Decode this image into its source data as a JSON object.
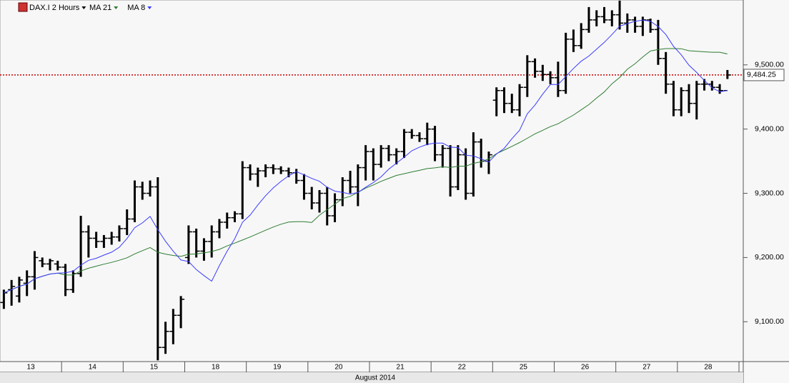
{
  "chart_data": {
    "type": "ohlc",
    "title": "DAX.I 2 Hours",
    "xlabel": "August 2014",
    "categories": [
      "13",
      "14",
      "15",
      "18",
      "19",
      "20",
      "21",
      "22",
      "25",
      "26",
      "27",
      "28"
    ],
    "bars": [
      [
        [
          9130,
          9150,
          9120,
          9145
        ],
        [
          9150,
          9165,
          9125,
          9155
        ],
        [
          9140,
          9170,
          9130,
          9165
        ],
        [
          9160,
          9180,
          9140,
          9170
        ],
        [
          9170,
          9210,
          9150,
          9200
        ],
        [
          9195,
          9200,
          9185,
          9190
        ],
        [
          9190,
          9198,
          9180,
          9195
        ],
        [
          9190,
          9195,
          9180,
          9185
        ]
      ],
      [
        [
          9185,
          9190,
          9140,
          9150
        ],
        [
          9150,
          9180,
          9145,
          9175
        ],
        [
          9175,
          9265,
          9170,
          9240
        ],
        [
          9240,
          9250,
          9200,
          9230
        ],
        [
          9230,
          9240,
          9215,
          9225
        ],
        [
          9225,
          9235,
          9215,
          9230
        ],
        [
          9230,
          9240,
          9220,
          9232
        ],
        [
          9232,
          9250,
          9225,
          9245
        ]
      ],
      [
        [
          9245,
          9275,
          9235,
          9260
        ],
        [
          9260,
          9320,
          9255,
          9310
        ],
        [
          9310,
          9318,
          9290,
          9300
        ],
        [
          9300,
          9320,
          9295,
          9310
        ],
        [
          9310,
          9325,
          9040,
          9060
        ],
        [
          9060,
          9100,
          9050,
          9085
        ],
        [
          9085,
          9120,
          9065,
          9110
        ],
        [
          9110,
          9140,
          9090,
          9135
        ]
      ],
      [
        [
          9200,
          9250,
          9190,
          9240
        ],
        [
          9240,
          9245,
          9200,
          9210
        ],
        [
          9210,
          9230,
          9195,
          9225
        ],
        [
          9225,
          9250,
          9200,
          9240
        ],
        [
          9240,
          9260,
          9230,
          9255
        ],
        [
          9255,
          9270,
          9245,
          9262
        ],
        [
          9262,
          9272,
          9255,
          9268
        ],
        [
          9268,
          9350,
          9260,
          9340
        ]
      ],
      [
        [
          9340,
          9345,
          9320,
          9330
        ],
        [
          9330,
          9340,
          9310,
          9335
        ],
        [
          9335,
          9345,
          9325,
          9340
        ],
        [
          9340,
          9345,
          9330,
          9338
        ],
        [
          9338,
          9342,
          9330,
          9335
        ],
        [
          9335,
          9340,
          9325,
          9332
        ],
        [
          9332,
          9338,
          9315,
          9320
        ],
        [
          9320,
          9330,
          9290,
          9300
        ]
      ],
      [
        [
          9300,
          9310,
          9275,
          9285
        ],
        [
          9285,
          9305,
          9270,
          9300
        ],
        [
          9300,
          9310,
          9250,
          9265
        ],
        [
          9265,
          9300,
          9255,
          9290
        ],
        [
          9290,
          9325,
          9280,
          9320
        ],
        [
          9320,
          9335,
          9300,
          9310
        ],
        [
          9310,
          9345,
          9280,
          9340
        ],
        [
          9340,
          9375,
          9320,
          9365
        ]
      ],
      [
        [
          9365,
          9370,
          9320,
          9345
        ],
        [
          9345,
          9375,
          9340,
          9370
        ],
        [
          9370,
          9375,
          9350,
          9360
        ],
        [
          9360,
          9370,
          9345,
          9365
        ],
        [
          9365,
          9400,
          9355,
          9395
        ],
        [
          9395,
          9400,
          9385,
          9390
        ],
        [
          9390,
          9395,
          9380,
          9385
        ],
        [
          9385,
          9410,
          9375,
          9400
        ]
      ],
      [
        [
          9400,
          9405,
          9350,
          9360
        ],
        [
          9360,
          9375,
          9340,
          9370
        ],
        [
          9370,
          9375,
          9295,
          9310
        ],
        [
          9310,
          9375,
          9305,
          9360
        ],
        [
          9360,
          9370,
          9290,
          9300
        ],
        [
          9300,
          9395,
          9295,
          9380
        ],
        [
          9380,
          9385,
          9340,
          9350
        ],
        [
          9350,
          9365,
          9330,
          9360
        ]
      ],
      [
        [
          9445,
          9465,
          9420,
          9460
        ],
        [
          9460,
          9465,
          9425,
          9440
        ],
        [
          9440,
          9455,
          9425,
          9430
        ],
        [
          9430,
          9470,
          9420,
          9465
        ],
        [
          9465,
          9515,
          9450,
          9505
        ],
        [
          9505,
          9510,
          9480,
          9490
        ],
        [
          9490,
          9500,
          9475,
          9485
        ],
        [
          9485,
          9490,
          9470,
          9480
        ]
      ],
      [
        [
          9480,
          9505,
          9450,
          9460
        ],
        [
          9460,
          9550,
          9455,
          9540
        ],
        [
          9540,
          9555,
          9520,
          9530
        ],
        [
          9530,
          9565,
          9525,
          9555
        ],
        [
          9555,
          9590,
          9550,
          9570
        ],
        [
          9570,
          9585,
          9560,
          9575
        ],
        [
          9575,
          9590,
          9565,
          9570
        ],
        [
          9570,
          9585,
          9560,
          9578
        ]
      ],
      [
        [
          9578,
          9600,
          9555,
          9565
        ],
        [
          9565,
          9580,
          9550,
          9570
        ],
        [
          9570,
          9575,
          9550,
          9560
        ],
        [
          9560,
          9575,
          9545,
          9570
        ],
        [
          9570,
          9572,
          9550,
          9555
        ],
        [
          9555,
          9570,
          9500,
          9510
        ],
        [
          9510,
          9520,
          9455,
          9470
        ],
        [
          9470,
          9475,
          9420,
          9430
        ]
      ],
      [
        [
          9430,
          9465,
          9420,
          9460
        ],
        [
          9460,
          9470,
          9425,
          9440
        ],
        [
          9440,
          9475,
          9415,
          9470
        ],
        [
          9470,
          9478,
          9460,
          9470
        ],
        [
          9470,
          9475,
          9460,
          9465
        ],
        [
          9465,
          9470,
          9455,
          9460
        ],
        [
          9460,
          9492,
          9478,
          9484.25
        ]
      ]
    ],
    "indicators": [
      {
        "name": "MA 21",
        "period": 21,
        "color": "#2e7d32"
      },
      {
        "name": "MA 8",
        "period": 8,
        "color": "#3b3bff"
      }
    ],
    "last": 9484.25,
    "last_label": "9,484.25",
    "last_color": "#cc0000",
    "ylim": [
      9038,
      9601
    ],
    "yticks": [
      {
        "value": 9100,
        "label": "9,100.00"
      },
      {
        "value": 9200,
        "label": "9,200.00"
      },
      {
        "value": 9300,
        "label": "9,300.00"
      },
      {
        "value": 9400,
        "label": "9,400.00"
      },
      {
        "value": 9500,
        "label": "9,500.00"
      }
    ],
    "bar_color": "#000000",
    "grid": false
  }
}
